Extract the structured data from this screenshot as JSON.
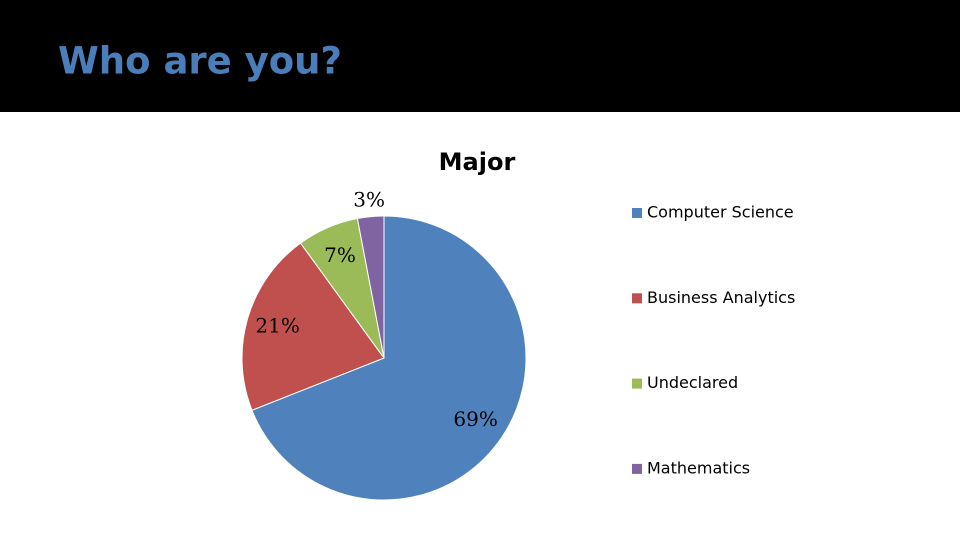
{
  "slide": {
    "title": "Who are you?"
  },
  "chart_data": {
    "type": "pie",
    "title": "Major",
    "categories": [
      "Computer Science",
      "Business Analytics",
      "Undeclared",
      "Mathematics"
    ],
    "values": [
      69,
      21,
      7,
      3
    ],
    "value_labels": [
      "69%",
      "21%",
      "7%",
      "3%"
    ],
    "colors": [
      "#4f81bd",
      "#c0504d",
      "#9bbb59",
      "#8064a2"
    ],
    "legend": "right"
  }
}
